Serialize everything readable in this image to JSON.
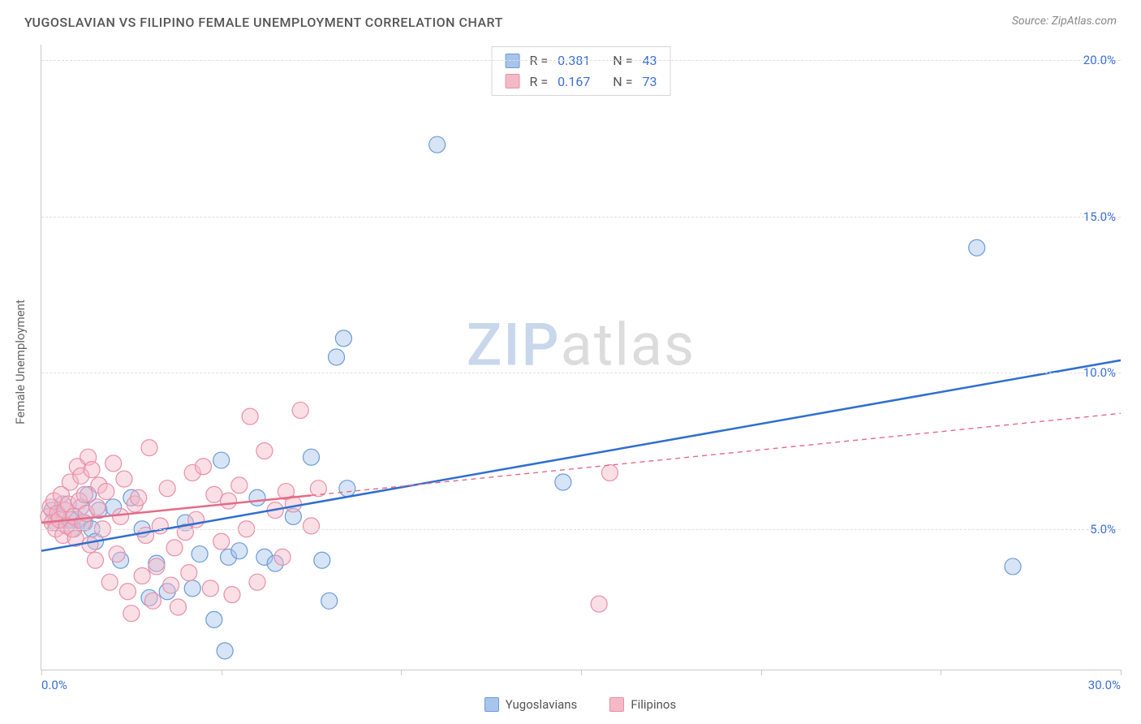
{
  "title": "YUGOSLAVIAN VS FILIPINO FEMALE UNEMPLOYMENT CORRELATION CHART",
  "source": "Source: ZipAtlas.com",
  "ylabel": "Female Unemployment",
  "watermark": {
    "part1": "ZIP",
    "part2": "atlas"
  },
  "chart": {
    "type": "scatter",
    "background_color": "#ffffff",
    "grid_color": "#dedede",
    "axis_color": "#c9c9c9",
    "tick_label_color": "#3b6fd6",
    "xlim": [
      0,
      30
    ],
    "ylim": [
      0.5,
      20.5
    ],
    "xticks": [
      0,
      5,
      10,
      15,
      20,
      25,
      30
    ],
    "xtick_labels": [
      "0.0%",
      "",
      "",
      "",
      "",
      "",
      "30.0%"
    ],
    "yticks": [
      5,
      10,
      15,
      20
    ],
    "ytick_labels": [
      "5.0%",
      "10.0%",
      "15.0%",
      "20.0%"
    ],
    "marker_radius": 10,
    "marker_opacity": 0.45,
    "line_width": 2.5,
    "series": [
      {
        "name": "Yugoslavians",
        "fill": "#a7c4ec",
        "stroke": "#6b9bd8",
        "line_color": "#2f6ed0",
        "line_dash": "none",
        "R": "0.381",
        "N": "43",
        "trend": {
          "x1": 0,
          "y1": 4.3,
          "x2": 30,
          "y2": 10.4
        },
        "points": [
          [
            0.3,
            5.6
          ],
          [
            0.4,
            5.2
          ],
          [
            0.5,
            5.4
          ],
          [
            0.6,
            5.8
          ],
          [
            0.7,
            5.1
          ],
          [
            0.8,
            5.3
          ],
          [
            0.9,
            5.0
          ],
          [
            1.0,
            5.3
          ],
          [
            1.1,
            5.7
          ],
          [
            1.2,
            5.2
          ],
          [
            1.3,
            6.1
          ],
          [
            1.4,
            5.0
          ],
          [
            1.5,
            4.6
          ],
          [
            1.6,
            5.6
          ],
          [
            2.0,
            5.7
          ],
          [
            2.2,
            4.0
          ],
          [
            2.5,
            6.0
          ],
          [
            2.8,
            5.0
          ],
          [
            3.0,
            2.8
          ],
          [
            3.2,
            3.9
          ],
          [
            3.5,
            3.0
          ],
          [
            4.0,
            5.2
          ],
          [
            4.2,
            3.1
          ],
          [
            4.4,
            4.2
          ],
          [
            4.8,
            2.1
          ],
          [
            5.0,
            7.2
          ],
          [
            5.1,
            1.1
          ],
          [
            5.2,
            4.1
          ],
          [
            5.5,
            4.3
          ],
          [
            6.0,
            6.0
          ],
          [
            6.2,
            4.1
          ],
          [
            6.5,
            3.9
          ],
          [
            7.0,
            5.4
          ],
          [
            7.5,
            7.3
          ],
          [
            7.8,
            4.0
          ],
          [
            8.0,
            2.7
          ],
          [
            8.2,
            10.5
          ],
          [
            8.4,
            11.1
          ],
          [
            8.5,
            6.3
          ],
          [
            11.0,
            17.3
          ],
          [
            14.5,
            6.5
          ],
          [
            26.0,
            14.0
          ],
          [
            27.0,
            3.8
          ]
        ]
      },
      {
        "name": "Filipinos",
        "fill": "#f4b9c7",
        "stroke": "#e98fa6",
        "line_color": "#e46b86",
        "line_dash": "6 5",
        "R": "0.167",
        "N": "73",
        "trend": {
          "x1": 0,
          "y1": 5.2,
          "x2": 30,
          "y2": 8.7
        },
        "trend_solid_until_x": 7.5,
        "points": [
          [
            0.2,
            5.4
          ],
          [
            0.25,
            5.7
          ],
          [
            0.3,
            5.2
          ],
          [
            0.35,
            5.9
          ],
          [
            0.4,
            5.0
          ],
          [
            0.45,
            5.5
          ],
          [
            0.5,
            5.3
          ],
          [
            0.55,
            6.1
          ],
          [
            0.6,
            4.8
          ],
          [
            0.65,
            5.6
          ],
          [
            0.7,
            5.1
          ],
          [
            0.75,
            5.8
          ],
          [
            0.8,
            6.5
          ],
          [
            0.85,
            5.0
          ],
          [
            0.9,
            5.4
          ],
          [
            0.95,
            4.7
          ],
          [
            1.0,
            7.0
          ],
          [
            1.05,
            5.9
          ],
          [
            1.1,
            6.7
          ],
          [
            1.15,
            5.2
          ],
          [
            1.2,
            6.1
          ],
          [
            1.25,
            5.5
          ],
          [
            1.3,
            7.3
          ],
          [
            1.35,
            4.5
          ],
          [
            1.4,
            6.9
          ],
          [
            1.5,
            4.0
          ],
          [
            1.55,
            5.7
          ],
          [
            1.6,
            6.4
          ],
          [
            1.7,
            5.0
          ],
          [
            1.8,
            6.2
          ],
          [
            1.9,
            3.3
          ],
          [
            2.0,
            7.1
          ],
          [
            2.1,
            4.2
          ],
          [
            2.2,
            5.4
          ],
          [
            2.3,
            6.6
          ],
          [
            2.4,
            3.0
          ],
          [
            2.5,
            2.3
          ],
          [
            2.6,
            5.8
          ],
          [
            2.7,
            6.0
          ],
          [
            2.8,
            3.5
          ],
          [
            2.9,
            4.8
          ],
          [
            3.0,
            7.6
          ],
          [
            3.1,
            2.7
          ],
          [
            3.2,
            3.8
          ],
          [
            3.3,
            5.1
          ],
          [
            3.5,
            6.3
          ],
          [
            3.6,
            3.2
          ],
          [
            3.7,
            4.4
          ],
          [
            3.8,
            2.5
          ],
          [
            4.0,
            4.9
          ],
          [
            4.1,
            3.6
          ],
          [
            4.2,
            6.8
          ],
          [
            4.3,
            5.3
          ],
          [
            4.5,
            7.0
          ],
          [
            4.7,
            3.1
          ],
          [
            4.8,
            6.1
          ],
          [
            5.0,
            4.6
          ],
          [
            5.2,
            5.9
          ],
          [
            5.3,
            2.9
          ],
          [
            5.5,
            6.4
          ],
          [
            5.7,
            5.0
          ],
          [
            5.8,
            8.6
          ],
          [
            6.0,
            3.3
          ],
          [
            6.2,
            7.5
          ],
          [
            6.5,
            5.6
          ],
          [
            6.7,
            4.1
          ],
          [
            6.8,
            6.2
          ],
          [
            7.0,
            5.8
          ],
          [
            7.2,
            8.8
          ],
          [
            7.5,
            5.1
          ],
          [
            7.7,
            6.3
          ],
          [
            15.5,
            2.6
          ],
          [
            15.8,
            6.8
          ]
        ]
      }
    ]
  },
  "legend": {
    "series1": "Yugoslavians",
    "series2": "Filipinos"
  },
  "stats_labels": {
    "R": "R =",
    "N": "N ="
  }
}
